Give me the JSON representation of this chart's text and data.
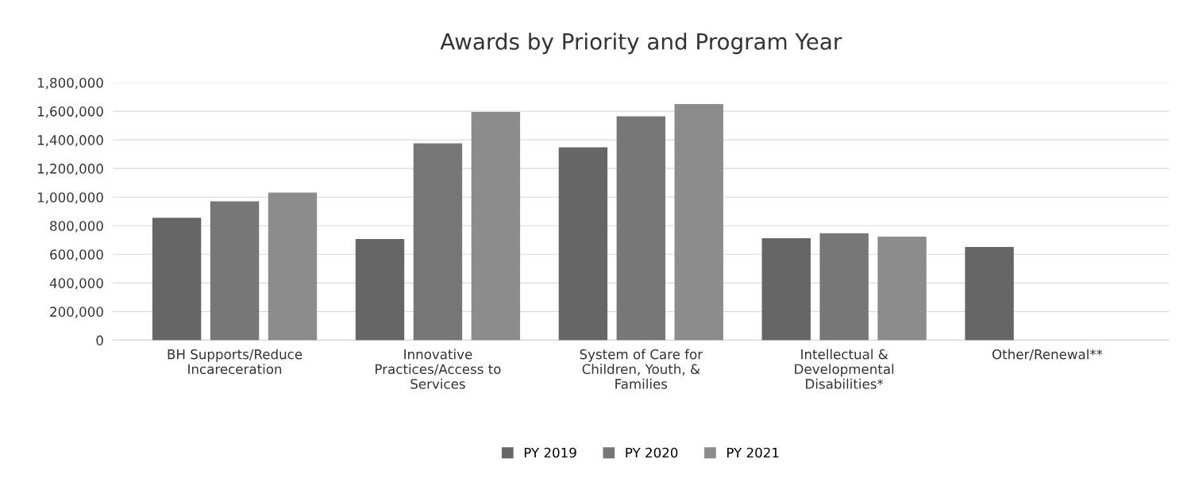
{
  "chart_data": {
    "type": "bar",
    "title": "Awards by Priority and Program Year",
    "categories": [
      "BH Supports/Reduce Incareceration",
      "Innovative Practices/Access to Services",
      "System of Care for Children, Youth, & Families",
      "Intellectual & Developmental Disabilities*",
      "Other/Renewal**"
    ],
    "series": [
      {
        "name": "PY 2019",
        "color": "#666666",
        "values": [
          855000,
          707000,
          1348000,
          713000,
          652000
        ]
      },
      {
        "name": "PY 2020",
        "color": "#777777",
        "values": [
          970000,
          1376000,
          1565000,
          747000,
          null
        ]
      },
      {
        "name": "PY 2021",
        "color": "#8c8c8c",
        "values": [
          1031000,
          1595000,
          1650000,
          724000,
          null
        ]
      }
    ],
    "ylim": [
      0,
      1800000
    ],
    "yticks": [
      {
        "value": 0,
        "label": "0"
      },
      {
        "value": 200000,
        "label": "200,000"
      },
      {
        "value": 400000,
        "label": "400,000"
      },
      {
        "value": 600000,
        "label": "600,000"
      },
      {
        "value": 800000,
        "label": "800,000"
      },
      {
        "value": 1000000,
        "label": "1,000,000"
      },
      {
        "value": 1200000,
        "label": "1,200,000"
      },
      {
        "value": 1400000,
        "label": "1,400,000"
      },
      {
        "value": 1600000,
        "label": "1,600,000"
      },
      {
        "value": 1800000,
        "label": "1,800,000"
      }
    ],
    "grid": "y",
    "legend": "bottom"
  }
}
